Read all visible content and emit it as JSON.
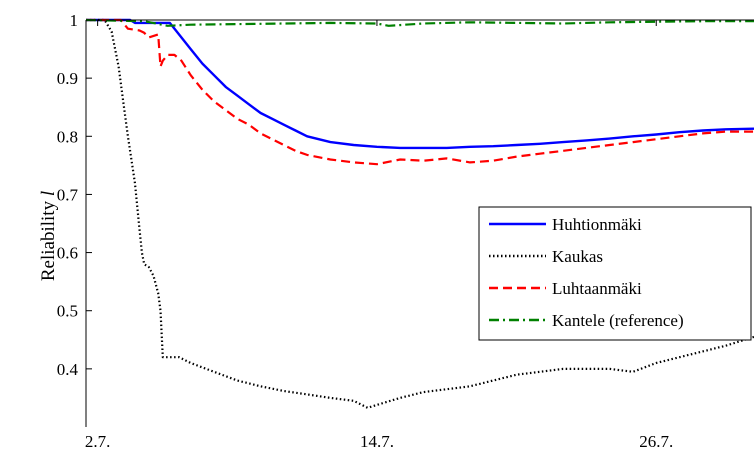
{
  "chart_data": {
    "type": "line",
    "title": "",
    "xlabel": "",
    "ylabel": "Reliability",
    "ylabel_var": "l",
    "xlim": [
      1.5,
      30.2
    ],
    "ylim": [
      0.3,
      1.0
    ],
    "xticks": [
      {
        "value": 2,
        "label": "2.7."
      },
      {
        "value": 14,
        "label": "14.7."
      },
      {
        "value": 26,
        "label": "26.7."
      }
    ],
    "yticks": [
      {
        "value": 0.4,
        "label": "0.4"
      },
      {
        "value": 0.5,
        "label": "0.5"
      },
      {
        "value": 0.6,
        "label": "0.6"
      },
      {
        "value": 0.7,
        "label": "0.7"
      },
      {
        "value": 0.8,
        "label": "0.8"
      },
      {
        "value": 0.9,
        "label": "0.9"
      },
      {
        "value": 1.0,
        "label": "1"
      }
    ],
    "grid": false,
    "legend_position": "right",
    "series": [
      {
        "name": "Huhtionmäki",
        "color": "#0000ff",
        "dash": "solid",
        "x": [
          1.5,
          3.4,
          3.6,
          5.1,
          5.4,
          6.0,
          6.5,
          7.0,
          7.5,
          8.0,
          8.5,
          9.0,
          9.5,
          10.0,
          10.5,
          11.0,
          12.0,
          13.0,
          14.0,
          15.0,
          16.0,
          17.0,
          18.0,
          19.0,
          20.0,
          21.0,
          22.0,
          23.0,
          24.0,
          25.0,
          26.0,
          27.0,
          28.0,
          29.0,
          30.2
        ],
        "y": [
          1.0,
          1.0,
          0.995,
          0.995,
          0.98,
          0.95,
          0.925,
          0.905,
          0.885,
          0.87,
          0.855,
          0.84,
          0.83,
          0.82,
          0.81,
          0.8,
          0.79,
          0.785,
          0.782,
          0.78,
          0.78,
          0.78,
          0.782,
          0.783,
          0.785,
          0.787,
          0.79,
          0.793,
          0.796,
          0.8,
          0.803,
          0.807,
          0.81,
          0.812,
          0.813
        ]
      },
      {
        "name": "Kaukas",
        "color": "#000000",
        "dash": "dotted",
        "x": [
          1.5,
          2.3,
          2.6,
          2.9,
          3.1,
          3.3,
          3.6,
          3.8,
          3.9,
          4.0,
          4.2,
          4.4,
          4.6,
          4.7,
          4.8,
          5.0,
          5.5,
          6.0,
          7.0,
          8.0,
          9.0,
          10.0,
          11.0,
          12.0,
          13.0,
          13.6,
          14.0,
          15.0,
          16.0,
          17.0,
          18.0,
          19.0,
          20.0,
          21.0,
          22.0,
          23.0,
          24.0,
          25.0,
          26.0,
          27.0,
          28.0,
          29.0,
          30.2
        ],
        "y": [
          1.0,
          1.0,
          0.98,
          0.92,
          0.86,
          0.8,
          0.72,
          0.64,
          0.6,
          0.58,
          0.575,
          0.56,
          0.53,
          0.5,
          0.42,
          0.42,
          0.42,
          0.41,
          0.395,
          0.38,
          0.37,
          0.362,
          0.356,
          0.35,
          0.345,
          0.333,
          0.338,
          0.35,
          0.36,
          0.365,
          0.37,
          0.38,
          0.39,
          0.395,
          0.4,
          0.4,
          0.4,
          0.395,
          0.41,
          0.42,
          0.43,
          0.44,
          0.455
        ]
      },
      {
        "name": "Luhtaanmäki",
        "color": "#ff0000",
        "dash": "dashed",
        "x": [
          1.5,
          3.0,
          3.1,
          3.3,
          3.8,
          4.0,
          4.2,
          4.6,
          4.7,
          4.8,
          5.0,
          5.3,
          5.6,
          6.0,
          6.5,
          7.0,
          7.5,
          8.0,
          8.5,
          9.0,
          9.5,
          10.0,
          10.5,
          11.0,
          12.0,
          13.0,
          14.0,
          15.0,
          16.0,
          17.0,
          18.0,
          19.0,
          20.0,
          21.0,
          22.0,
          23.0,
          24.0,
          25.0,
          26.0,
          27.0,
          28.0,
          29.0,
          30.2
        ],
        "y": [
          1.0,
          1.0,
          0.995,
          0.985,
          0.982,
          0.978,
          0.97,
          0.975,
          0.92,
          0.93,
          0.94,
          0.94,
          0.93,
          0.905,
          0.88,
          0.86,
          0.845,
          0.83,
          0.82,
          0.805,
          0.795,
          0.785,
          0.775,
          0.768,
          0.76,
          0.755,
          0.752,
          0.76,
          0.758,
          0.762,
          0.755,
          0.758,
          0.765,
          0.77,
          0.775,
          0.78,
          0.785,
          0.79,
          0.795,
          0.8,
          0.805,
          0.808,
          0.808
        ]
      },
      {
        "name": "Kantele (reference)",
        "color": "#008000",
        "dash": "dashdot",
        "x": [
          1.5,
          4.0,
          5.0,
          6.0,
          8.0,
          10.0,
          12.0,
          14.0,
          14.5,
          16.0,
          18.0,
          20.0,
          22.0,
          24.0,
          26.0,
          28.0,
          30.2
        ],
        "y": [
          1.0,
          0.998,
          0.99,
          0.992,
          0.993,
          0.994,
          0.995,
          0.994,
          0.99,
          0.994,
          0.996,
          0.995,
          0.994,
          0.996,
          0.997,
          0.998,
          0.998
        ]
      }
    ]
  }
}
